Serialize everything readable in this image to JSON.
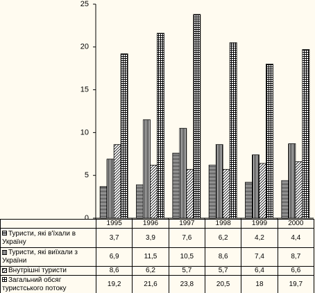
{
  "chart_data": {
    "type": "bar",
    "categories": [
      "1995",
      "1996",
      "1997",
      "1998",
      "1999",
      "2000"
    ],
    "series": [
      {
        "name": "Туристи, які в'їхали в Україну",
        "color": "#000000",
        "pattern": "horizontal",
        "values": [
          3.7,
          3.9,
          7.6,
          6.2,
          4.2,
          4.4
        ],
        "value_labels": [
          "3,7",
          "3,9",
          "7,6",
          "6,2",
          "4,2",
          "4,4"
        ]
      },
      {
        "name": "Туристи, які виїхали з України",
        "color": "#000000",
        "pattern": "vertical",
        "values": [
          6.9,
          11.5,
          10.5,
          8.6,
          7.4,
          8.7
        ],
        "value_labels": [
          "6,9",
          "11,5",
          "10,5",
          "8,6",
          "7,4",
          "8,7"
        ]
      },
      {
        "name": "Внутрішні туристи",
        "color": "#000000",
        "pattern": "diagonal",
        "values": [
          8.6,
          6.2,
          5.7,
          5.7,
          6.4,
          6.6
        ],
        "value_labels": [
          "8,6",
          "6,2",
          "5,7",
          "5,7",
          "6,4",
          "6,6"
        ]
      },
      {
        "name": "Загальний обсяг туристського потоку",
        "color": "#000000",
        "pattern": "grid",
        "values": [
          19.2,
          21.6,
          23.8,
          20.5,
          18,
          19.7
        ],
        "value_labels": [
          "19,2",
          "21,6",
          "23,8",
          "20,5",
          "18",
          "19,7"
        ]
      }
    ],
    "ylim": [
      0,
      25
    ],
    "yticks": [
      0,
      5,
      10,
      15,
      20,
      25
    ],
    "grid": false,
    "legend": "table"
  }
}
